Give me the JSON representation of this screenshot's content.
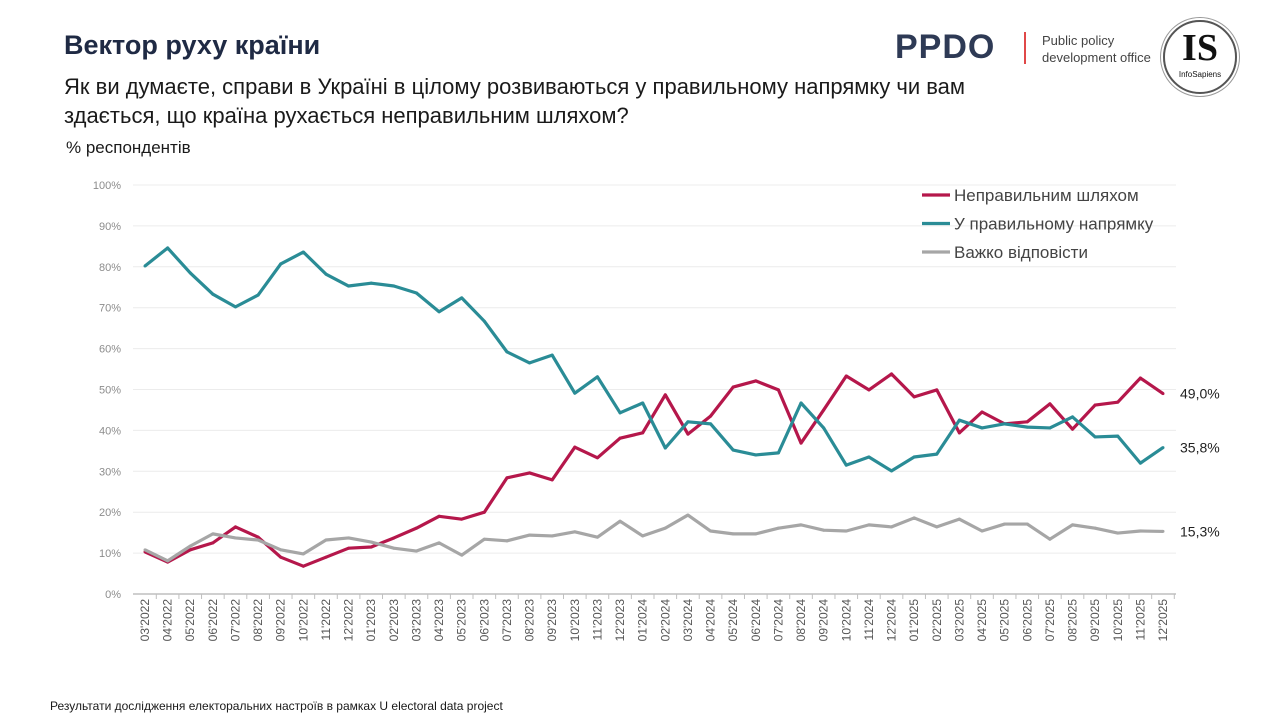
{
  "header": {
    "title": "Вектор руху країни",
    "question": "Як ви думаєте, справи в Україні в цілому розвиваються у правильному напрямку чи вам здається, що країна рухається неправильним шляхом?",
    "unit": "% респондентів"
  },
  "logos": {
    "ppdo": "PPDO",
    "ppdo_sub": "Public policy development office",
    "is": "IS",
    "is_sub": "InfoSapiens"
  },
  "footer": "Результати дослідження електоральних настроїв в рамках U electoral data project",
  "chart_data": {
    "type": "line",
    "title": "",
    "xlabel": "",
    "ylabel": "% респондентів",
    "ylim": [
      0,
      100
    ],
    "yticks": [
      "0%",
      "10%",
      "20%",
      "30%",
      "40%",
      "50%",
      "60%",
      "70%",
      "80%",
      "90%",
      "100%"
    ],
    "grid": true,
    "legend_position": "top-right",
    "x": [
      "03'2022",
      "04'2022",
      "05'2022",
      "06'2022",
      "07'2022",
      "08'2022",
      "09'2022",
      "10'2022",
      "11'2022",
      "12'2022",
      "01'2023",
      "02'2023",
      "03'2023",
      "04'2023",
      "05'2023",
      "06'2023",
      "07'2023",
      "08'2023",
      "09'2023",
      "10'2023",
      "11'2023",
      "12'2023",
      "01'2024",
      "02'2024",
      "03'2024",
      "04'2024",
      "05'2024",
      "06'2024",
      "07'2024",
      "08'2024",
      "09'2024",
      "10'2024",
      "11'2024",
      "12'2024",
      "01'2025",
      "02'2025",
      "03'2025",
      "04'2025",
      "05'2025",
      "06'2025",
      "07'2025",
      "08'2025",
      "09'2025",
      "10'2025",
      "11'2025",
      "12'2025"
    ],
    "series": [
      {
        "name": "Неправильним шляхом",
        "color": "#b5174b",
        "end_label": "49,0%",
        "values": [
          10.3,
          7.8,
          10.8,
          12.5,
          16.4,
          13.9,
          9.0,
          6.8,
          9.0,
          11.2,
          11.5,
          13.7,
          16.1,
          19.0,
          18.3,
          20.0,
          28.4,
          29.6,
          27.9,
          35.9,
          33.3,
          38.1,
          39.4,
          48.7,
          39.1,
          43.5,
          50.6,
          52.1,
          49.9,
          36.9,
          45.0,
          53.3,
          49.9,
          53.8,
          48.2,
          49.9,
          39.4,
          44.5,
          41.6,
          42.1,
          46.5,
          40.3,
          46.2,
          46.9,
          52.8,
          49.0
        ]
      },
      {
        "name": "У правильному напрямку",
        "color": "#2a8c96",
        "end_label": "35,8%",
        "values": [
          80.2,
          84.6,
          78.5,
          73.3,
          70.2,
          73.1,
          80.7,
          83.6,
          78.2,
          75.3,
          76.0,
          75.3,
          73.6,
          69.0,
          72.4,
          66.7,
          59.2,
          56.5,
          58.4,
          49.1,
          53.1,
          44.3,
          46.7,
          35.7,
          42.1,
          41.6,
          35.2,
          34.0,
          34.5,
          46.7,
          40.6,
          31.5,
          33.5,
          30.1,
          33.5,
          34.2,
          42.5,
          40.6,
          41.6,
          40.8,
          40.6,
          43.3,
          38.4,
          38.6,
          32.0,
          35.8
        ]
      },
      {
        "name": "Важко відповісти",
        "color": "#a6a6a6",
        "end_label": "15,3%",
        "values": [
          10.8,
          8.1,
          11.7,
          14.7,
          13.7,
          13.2,
          10.8,
          9.8,
          13.2,
          13.7,
          12.7,
          11.2,
          10.5,
          12.5,
          9.5,
          13.4,
          13.0,
          14.4,
          14.2,
          15.2,
          13.9,
          17.8,
          14.2,
          16.1,
          19.3,
          15.4,
          14.7,
          14.7,
          16.1,
          16.9,
          15.6,
          15.4,
          16.9,
          16.4,
          18.6,
          16.4,
          18.3,
          15.4,
          17.1,
          17.1,
          13.4,
          16.9,
          16.1,
          14.9,
          15.4,
          15.3
        ]
      }
    ]
  }
}
